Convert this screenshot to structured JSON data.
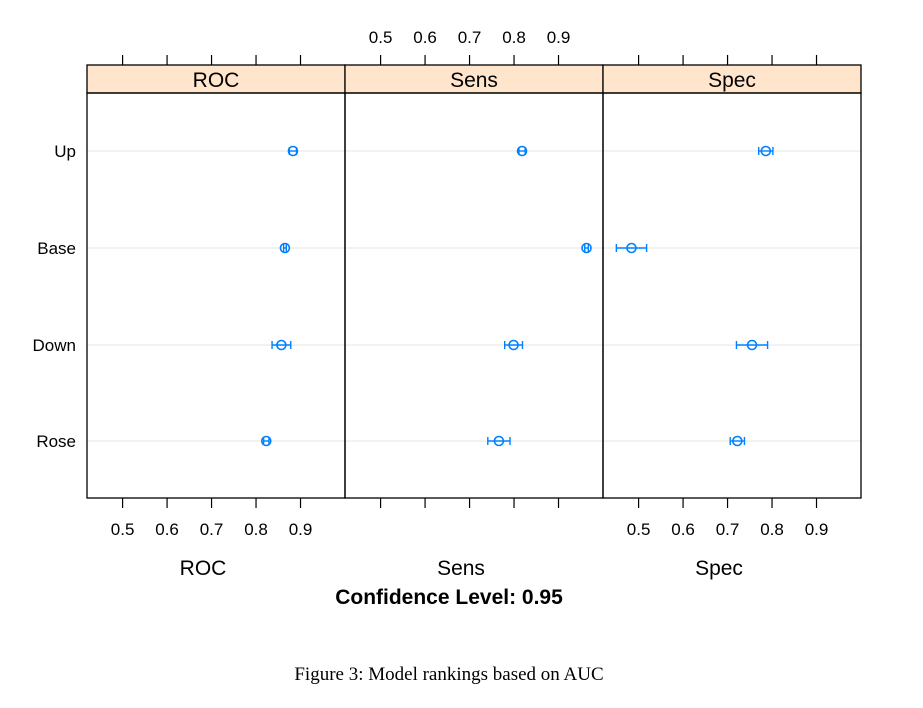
{
  "chart_data": {
    "type": "dotplot",
    "title": "",
    "xlabel_main": "Confidence Level: 0.95",
    "models": [
      "Up",
      "Base",
      "Down",
      "Rose"
    ],
    "ticks": [
      0.5,
      0.6,
      0.7,
      0.8,
      0.9
    ],
    "tick_labels": [
      "0.5",
      "0.6",
      "0.7",
      "0.8",
      "0.9"
    ],
    "xlim": [
      0.42,
      1.0
    ],
    "grid": true,
    "panels": [
      {
        "name": "ROC",
        "xlabel": "ROC",
        "estimates": [
          {
            "model": "Up",
            "value": 0.883,
            "lower": 0.875,
            "upper": 0.891
          },
          {
            "model": "Base",
            "value": 0.865,
            "lower": 0.862,
            "upper": 0.868
          },
          {
            "model": "Down",
            "value": 0.857,
            "lower": 0.836,
            "upper": 0.878
          },
          {
            "model": "Rose",
            "value": 0.823,
            "lower": 0.817,
            "upper": 0.829
          }
        ]
      },
      {
        "name": "Sens",
        "xlabel": "Sens",
        "estimates": [
          {
            "model": "Up",
            "value": 0.818,
            "lower": 0.811,
            "upper": 0.825
          },
          {
            "model": "Base",
            "value": 0.963,
            "lower": 0.959,
            "upper": 0.967
          },
          {
            "model": "Down",
            "value": 0.799,
            "lower": 0.779,
            "upper": 0.819
          },
          {
            "model": "Rose",
            "value": 0.766,
            "lower": 0.741,
            "upper": 0.791
          }
        ]
      },
      {
        "name": "Spec",
        "xlabel": "Spec",
        "estimates": [
          {
            "model": "Up",
            "value": 0.786,
            "lower": 0.77,
            "upper": 0.802
          },
          {
            "model": "Base",
            "value": 0.484,
            "lower": 0.45,
            "upper": 0.518
          },
          {
            "model": "Down",
            "value": 0.755,
            "lower": 0.72,
            "upper": 0.79
          },
          {
            "model": "Rose",
            "value": 0.722,
            "lower": 0.706,
            "upper": 0.738
          }
        ]
      }
    ]
  },
  "colors": {
    "strip": "#ffe5cc",
    "point": "#0080ff",
    "grid": "#e6e6e6",
    "frame": "#000000"
  },
  "caption": "Figure 3: Model rankings based on AUC"
}
